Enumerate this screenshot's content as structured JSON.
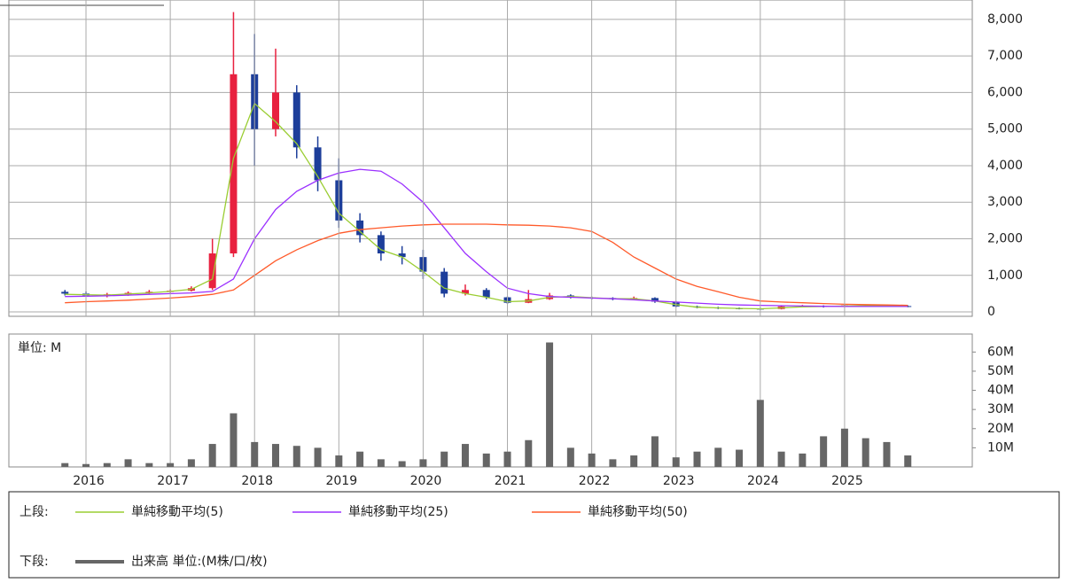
{
  "chart_data": [
    {
      "type": "candlestick",
      "x": [
        2015.75,
        2016,
        2016.25,
        2016.5,
        2016.75,
        2017,
        2017.25,
        2017.5,
        2017.75,
        2018,
        2018.25,
        2018.5,
        2018.75,
        2019,
        2019.25,
        2019.5,
        2019.75,
        2020,
        2020.25,
        2020.5,
        2020.75,
        2021,
        2021.25,
        2021.5,
        2021.75,
        2022,
        2022.25,
        2022.5,
        2022.75,
        2023,
        2023.25,
        2023.5,
        2023.75,
        2024,
        2024.25,
        2024.5,
        2024.75,
        2025,
        2025.25,
        2025.5,
        2025.75
      ],
      "open": [
        550,
        500,
        450,
        480,
        520,
        550,
        580,
        650,
        1600,
        6500,
        5000,
        6000,
        4500,
        3600,
        2500,
        2100,
        1600,
        1500,
        1100,
        500,
        600,
        400,
        250,
        350,
        450,
        400,
        380,
        350,
        380,
        280,
        150,
        120,
        100,
        90,
        80,
        150,
        160,
        140,
        180,
        170,
        160
      ],
      "high": [
        600,
        560,
        520,
        560,
        600,
        620,
        700,
        2000,
        8200,
        7600,
        7200,
        6200,
        4800,
        4200,
        2700,
        2200,
        1800,
        1700,
        1200,
        750,
        650,
        420,
        600,
        520,
        480,
        420,
        400,
        420,
        400,
        300,
        170,
        140,
        120,
        110,
        180,
        190,
        180,
        210,
        200,
        190,
        180
      ],
      "low": [
        450,
        420,
        400,
        440,
        480,
        520,
        560,
        600,
        1500,
        4000,
        4800,
        4200,
        3300,
        2300,
        1900,
        1400,
        1300,
        900,
        400,
        450,
        350,
        220,
        240,
        330,
        370,
        340,
        320,
        330,
        250,
        130,
        100,
        80,
        70,
        60,
        70,
        130,
        120,
        130,
        150,
        140,
        130
      ],
      "close": [
        500,
        450,
        480,
        520,
        550,
        580,
        650,
        1600,
        6500,
        5000,
        6000,
        4500,
        3600,
        2500,
        2100,
        1600,
        1500,
        1100,
        500,
        600,
        400,
        250,
        350,
        450,
        400,
        380,
        350,
        380,
        280,
        150,
        120,
        100,
        90,
        80,
        150,
        160,
        140,
        180,
        170,
        160,
        150
      ],
      "up_color": "#e8213f",
      "down_color": "#1d3e9a",
      "series": [
        {
          "name": "単純移動平均(5)",
          "color": "#9acd32",
          "values": [
            480,
            470,
            460,
            490,
            520,
            560,
            620,
            900,
            4200,
            5700,
            5200,
            4600,
            3700,
            2700,
            2200,
            1700,
            1500,
            1100,
            650,
            500,
            400,
            280,
            300,
            400,
            420,
            390,
            360,
            360,
            300,
            200,
            130,
            110,
            95,
            85,
            110,
            140,
            150,
            160,
            170,
            165,
            160
          ]
        },
        {
          "name": "単純移動平均(25)",
          "color": "#9b30ff",
          "values": [
            420,
            430,
            440,
            460,
            480,
            500,
            520,
            560,
            900,
            2000,
            2800,
            3300,
            3600,
            3800,
            3900,
            3850,
            3500,
            3000,
            2300,
            1600,
            1100,
            650,
            500,
            420,
            400,
            380,
            360,
            330,
            300,
            270,
            240,
            210,
            190,
            180,
            170,
            160,
            155,
            150,
            150,
            150,
            150
          ]
        },
        {
          "name": "単純移動平均(50)",
          "color": "#ff5a2a",
          "values": [
            250,
            280,
            300,
            320,
            350,
            380,
            420,
            480,
            600,
            1000,
            1400,
            1700,
            1950,
            2150,
            2250,
            2300,
            2350,
            2380,
            2400,
            2400,
            2400,
            2380,
            2370,
            2350,
            2300,
            2200,
            1900,
            1500,
            1200,
            900,
            700,
            550,
            400,
            300,
            270,
            250,
            230,
            210,
            200,
            190,
            180
          ]
        }
      ],
      "xlim": [
        2015.085,
        2026.515
      ],
      "ylim": [
        -120,
        8530
      ],
      "yticks": [
        0,
        {
          "value": 1000,
          "label": "1,000"
        },
        {
          "value": 2000,
          "label": "2,000"
        },
        {
          "value": 3000,
          "label": "3,000"
        },
        {
          "value": 4000,
          "label": "4,000"
        },
        {
          "value": 5000,
          "label": "5,000"
        },
        {
          "value": 6000,
          "label": "6,000"
        },
        {
          "value": 7000,
          "label": "7,000"
        },
        {
          "value": 8000,
          "label": "8,000"
        }
      ],
      "grid": true,
      "legend_label": "上段:"
    },
    {
      "type": "bar",
      "name": "出来高 単位:(M株/口/枚)",
      "unit_label": "単位: M",
      "color": "#666666",
      "x": [
        2015.75,
        2016,
        2016.25,
        2016.5,
        2016.75,
        2017,
        2017.25,
        2017.5,
        2017.75,
        2018,
        2018.25,
        2018.5,
        2018.75,
        2019,
        2019.25,
        2019.5,
        2019.75,
        2020,
        2020.25,
        2020.5,
        2020.75,
        2021,
        2021.25,
        2021.5,
        2021.75,
        2022,
        2022.25,
        2022.5,
        2022.75,
        2023,
        2023.25,
        2023.5,
        2023.75,
        2024,
        2024.25,
        2024.5,
        2024.75,
        2025,
        2025.25,
        2025.5,
        2025.75
      ],
      "values": [
        2,
        1.5,
        2,
        4,
        2,
        2,
        4,
        12,
        28,
        13,
        12,
        11,
        10,
        6,
        8,
        4,
        3,
        4,
        8,
        12,
        7,
        8,
        14,
        65,
        10,
        7,
        4,
        6,
        16,
        5,
        8,
        10,
        9,
        35,
        8,
        7,
        16,
        20,
        15,
        13,
        6
      ],
      "xlim": [
        2015.085,
        2026.515
      ],
      "xticks": [
        2016,
        2017,
        2018,
        2019,
        2020,
        2021,
        2022,
        2023,
        2024,
        2025
      ],
      "ylim": [
        0,
        69.4
      ],
      "yticks": [
        {
          "value": 10,
          "label": "10M"
        },
        {
          "value": 20,
          "label": "20M"
        },
        {
          "value": 30,
          "label": "30M"
        },
        {
          "value": 40,
          "label": "40M"
        },
        {
          "value": 50,
          "label": "50M"
        },
        {
          "value": 60,
          "label": "60M"
        }
      ],
      "grid": true,
      "legend_label": "下段:"
    }
  ]
}
